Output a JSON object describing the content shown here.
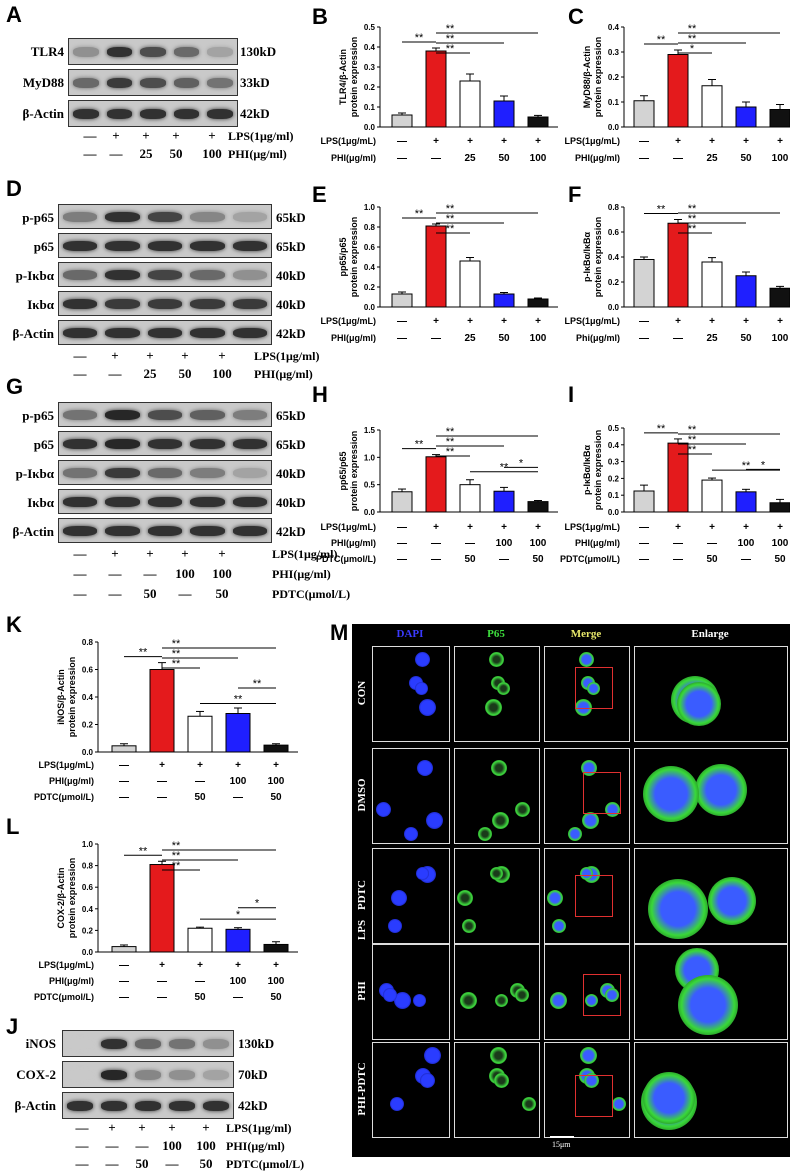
{
  "panel_labels": {
    "A": "A",
    "B": "B",
    "C": "C",
    "D": "D",
    "E": "E",
    "F": "F",
    "G": "G",
    "H": "H",
    "I": "I",
    "J": "J",
    "K": "K",
    "L": "L",
    "M": "M"
  },
  "blot_A": {
    "rows": [
      {
        "name": "TLR4",
        "kd": "130kD"
      },
      {
        "name": "MyD88",
        "kd": "33kD"
      },
      {
        "name": "β-Actin",
        "kd": "42kD"
      }
    ],
    "cond_rows": [
      {
        "label": "LPS(1μg/ml)",
        "values": [
          "—",
          "+",
          "+",
          "+",
          "+"
        ]
      },
      {
        "label": "PHI(μg/ml)",
        "values": [
          "—",
          "—",
          "25",
          "50",
          "100"
        ]
      }
    ]
  },
  "blot_D": {
    "rows": [
      {
        "name": "p-p65",
        "kd": "65kD"
      },
      {
        "name": "p65",
        "kd": "65kD"
      },
      {
        "name": "p-Iκbα",
        "kd": "40kD"
      },
      {
        "name": "Iκbα",
        "kd": "40kD"
      },
      {
        "name": "β-Actin",
        "kd": "42kD"
      }
    ],
    "cond_rows": [
      {
        "label": "LPS(1μg/ml)",
        "values": [
          "—",
          "+",
          "+",
          "+",
          "+"
        ]
      },
      {
        "label": "PHI(μg/ml)",
        "values": [
          "—",
          "—",
          "25",
          "50",
          "100"
        ]
      }
    ]
  },
  "blot_G": {
    "rows": [
      {
        "name": "p-p65",
        "kd": "65kD"
      },
      {
        "name": "p65",
        "kd": "65kD"
      },
      {
        "name": "p-Iκbα",
        "kd": "40kD"
      },
      {
        "name": "Iκbα",
        "kd": "40kD"
      },
      {
        "name": "β-Actin",
        "kd": "42kD"
      }
    ],
    "cond_rows": [
      {
        "label": "LPS(1μg/ml)",
        "values": [
          "—",
          "+",
          "+",
          "+",
          "+"
        ]
      },
      {
        "label": "PHI(μg/ml)",
        "values": [
          "—",
          "—",
          "—",
          "100",
          "100"
        ]
      },
      {
        "label": "PDTC(μmol/L)",
        "values": [
          "—",
          "—",
          "50",
          "—",
          "50"
        ]
      }
    ]
  },
  "blot_J": {
    "rows": [
      {
        "name": "iNOS",
        "kd": "130kD"
      },
      {
        "name": "COX-2",
        "kd": "70kD"
      },
      {
        "name": "β-Actin",
        "kd": "42kD"
      }
    ],
    "cond_rows": [
      {
        "label": "LPS(1μg/ml)",
        "values": [
          "—",
          "+",
          "+",
          "+",
          "+"
        ]
      },
      {
        "label": "PHI(μg/ml)",
        "values": [
          "—",
          "—",
          "—",
          "100",
          "100"
        ]
      },
      {
        "label": "PDTC(μmol/L)",
        "values": [
          "—",
          "—",
          "50",
          "—",
          "50"
        ]
      }
    ]
  },
  "chart_data": [
    {
      "id": "B",
      "type": "bar",
      "ylabel": "TLR4/β-Actin\nprotein expression",
      "ylim": [
        0,
        0.5
      ],
      "yticks": [
        "0.0",
        "0.1",
        "0.2",
        "0.3",
        "0.4",
        "0.5"
      ],
      "values": [
        0.06,
        0.38,
        0.23,
        0.13,
        0.05
      ],
      "errors": [
        0.01,
        0.015,
        0.035,
        0.025,
        0.008
      ],
      "colors": [
        "#d3d3d3",
        "#e41a1c",
        "#ffffff",
        "#1f1fff",
        "#111111"
      ],
      "sig": [
        {
          "a": 0,
          "b": 1,
          "t": "**"
        },
        {
          "a": 1,
          "b": 2,
          "t": "**"
        },
        {
          "a": 1,
          "b": 3,
          "t": "**"
        },
        {
          "a": 1,
          "b": 4,
          "t": "**"
        }
      ],
      "cond_rows": [
        {
          "label": "LPS(1μg/mL)",
          "values": [
            "—",
            "+",
            "+",
            "+",
            "+"
          ]
        },
        {
          "label": "PHI(μg/ml)",
          "values": [
            "—",
            "—",
            "25",
            "50",
            "100"
          ]
        }
      ]
    },
    {
      "id": "C",
      "type": "bar",
      "ylabel": "MyD88/β-Actin\nprotein expression",
      "ylim": [
        0,
        0.4
      ],
      "yticks": [
        "0.0",
        "0.1",
        "0.2",
        "0.3",
        "0.4"
      ],
      "values": [
        0.105,
        0.29,
        0.165,
        0.08,
        0.07
      ],
      "errors": [
        0.02,
        0.018,
        0.025,
        0.02,
        0.02
      ],
      "colors": [
        "#d3d3d3",
        "#e41a1c",
        "#ffffff",
        "#1f1fff",
        "#111111"
      ],
      "sig": [
        {
          "a": 0,
          "b": 1,
          "t": "**"
        },
        {
          "a": 1,
          "b": 2,
          "t": "*"
        },
        {
          "a": 1,
          "b": 3,
          "t": "**"
        },
        {
          "a": 1,
          "b": 4,
          "t": "**"
        }
      ],
      "cond_rows": [
        {
          "label": "LPS(1μg/mL)",
          "values": [
            "—",
            "+",
            "+",
            "+",
            "+"
          ]
        },
        {
          "label": "PHI(μg/ml)",
          "values": [
            "—",
            "—",
            "25",
            "50",
            "100"
          ]
        }
      ]
    },
    {
      "id": "E",
      "type": "bar",
      "ylabel": "pp65/p65\nprotein expression",
      "ylim": [
        0,
        1.0
      ],
      "yticks": [
        "0.0",
        "0.2",
        "0.4",
        "0.6",
        "0.8",
        "1.0"
      ],
      "values": [
        0.13,
        0.81,
        0.46,
        0.13,
        0.08
      ],
      "errors": [
        0.02,
        0.02,
        0.035,
        0.015,
        0.01
      ],
      "colors": [
        "#d3d3d3",
        "#e41a1c",
        "#ffffff",
        "#1f1fff",
        "#111111"
      ],
      "sig": [
        {
          "a": 0,
          "b": 1,
          "t": "**"
        },
        {
          "a": 1,
          "b": 2,
          "t": "**"
        },
        {
          "a": 1,
          "b": 3,
          "t": "**"
        },
        {
          "a": 1,
          "b": 4,
          "t": "**"
        }
      ],
      "cond_rows": [
        {
          "label": "LPS(1μg/mL)",
          "values": [
            "—",
            "+",
            "+",
            "+",
            "+"
          ]
        },
        {
          "label": "PHI(μg/ml)",
          "values": [
            "—",
            "—",
            "25",
            "50",
            "100"
          ]
        }
      ]
    },
    {
      "id": "F",
      "type": "bar",
      "ylabel": "p-IκBα/IκBα\nprotein expression",
      "ylim": [
        0,
        0.8
      ],
      "yticks": [
        "0.0",
        "0.2",
        "0.4",
        "0.6",
        "0.8"
      ],
      "values": [
        0.38,
        0.67,
        0.36,
        0.25,
        0.15
      ],
      "errors": [
        0.02,
        0.03,
        0.035,
        0.03,
        0.015
      ],
      "colors": [
        "#d3d3d3",
        "#e41a1c",
        "#ffffff",
        "#1f1fff",
        "#111111"
      ],
      "sig": [
        {
          "a": 0,
          "b": 1,
          "t": "**"
        },
        {
          "a": 1,
          "b": 2,
          "t": "**"
        },
        {
          "a": 1,
          "b": 3,
          "t": "**"
        },
        {
          "a": 1,
          "b": 4,
          "t": "**"
        }
      ],
      "cond_rows": [
        {
          "label": "LPS(1μg/mL)",
          "values": [
            "—",
            "+",
            "+",
            "+",
            "+"
          ]
        },
        {
          "label": "Phi(μg/ml)",
          "values": [
            "—",
            "—",
            "25",
            "50",
            "100"
          ]
        }
      ]
    },
    {
      "id": "H",
      "type": "bar",
      "ylabel": "pp65/p65\nprotein expression",
      "ylim": [
        0,
        1.5
      ],
      "yticks": [
        "0.0",
        "0.5",
        "1.0",
        "1.5"
      ],
      "values": [
        0.37,
        1.01,
        0.5,
        0.38,
        0.19
      ],
      "errors": [
        0.05,
        0.04,
        0.09,
        0.07,
        0.02
      ],
      "colors": [
        "#d3d3d3",
        "#e41a1c",
        "#ffffff",
        "#1f1fff",
        "#111111"
      ],
      "sig": [
        {
          "a": 0,
          "b": 1,
          "t": "**"
        },
        {
          "a": 1,
          "b": 2,
          "t": "**"
        },
        {
          "a": 1,
          "b": 3,
          "t": "**"
        },
        {
          "a": 1,
          "b": 4,
          "t": "**"
        },
        {
          "a": 2,
          "b": 4,
          "t": "**"
        },
        {
          "a": 3,
          "b": 4,
          "t": "*"
        }
      ],
      "cond_rows": [
        {
          "label": "LPS(1μg/mL)",
          "values": [
            "—",
            "+",
            "+",
            "+",
            "+"
          ]
        },
        {
          "label": "PHI(μg/ml)",
          "values": [
            "—",
            "—",
            "—",
            "100",
            "100"
          ]
        },
        {
          "label": "PDTC(μmol/L)",
          "values": [
            "—",
            "—",
            "50",
            "—",
            "50"
          ]
        }
      ]
    },
    {
      "id": "I",
      "type": "bar",
      "ylabel": "p-IκBα/IκBα\nprotein expression",
      "ylim": [
        0,
        0.5
      ],
      "yticks": [
        "0.0",
        "0.1",
        "0.2",
        "0.3",
        "0.4",
        "0.5"
      ],
      "values": [
        0.125,
        0.41,
        0.19,
        0.12,
        0.055
      ],
      "errors": [
        0.035,
        0.025,
        0.012,
        0.015,
        0.02
      ],
      "colors": [
        "#d3d3d3",
        "#e41a1c",
        "#ffffff",
        "#1f1fff",
        "#111111"
      ],
      "sig": [
        {
          "a": 0,
          "b": 1,
          "t": "**"
        },
        {
          "a": 1,
          "b": 2,
          "t": "**"
        },
        {
          "a": 1,
          "b": 3,
          "t": "**"
        },
        {
          "a": 1,
          "b": 4,
          "t": "**"
        },
        {
          "a": 2,
          "b": 4,
          "t": "**"
        },
        {
          "a": 3,
          "b": 4,
          "t": "*"
        }
      ],
      "cond_rows": [
        {
          "label": "LPS(1μg/mL)",
          "values": [
            "—",
            "+",
            "+",
            "+",
            "+"
          ]
        },
        {
          "label": "PHI(μg/ml)",
          "values": [
            "—",
            "—",
            "—",
            "100",
            "100"
          ]
        },
        {
          "label": "PDTC(μmol/L)",
          "values": [
            "—",
            "—",
            "50",
            "—",
            "50"
          ]
        }
      ]
    },
    {
      "id": "K",
      "type": "bar",
      "ylabel": "iNOS/β-Actin\nprotein expression",
      "ylim": [
        0,
        0.8
      ],
      "yticks": [
        "0.0",
        "0.2",
        "0.4",
        "0.6",
        "0.8"
      ],
      "values": [
        0.045,
        0.6,
        0.26,
        0.28,
        0.05
      ],
      "errors": [
        0.015,
        0.05,
        0.035,
        0.04,
        0.01
      ],
      "colors": [
        "#d3d3d3",
        "#e41a1c",
        "#ffffff",
        "#1f1fff",
        "#111111"
      ],
      "sig": [
        {
          "a": 0,
          "b": 1,
          "t": "**"
        },
        {
          "a": 1,
          "b": 2,
          "t": "**"
        },
        {
          "a": 1,
          "b": 3,
          "t": "**"
        },
        {
          "a": 1,
          "b": 4,
          "t": "**"
        },
        {
          "a": 2,
          "b": 4,
          "t": "**"
        },
        {
          "a": 3,
          "b": 4,
          "t": "**"
        }
      ],
      "cond_rows": [
        {
          "label": "LPS(1μg/mL)",
          "values": [
            "—",
            "+",
            "+",
            "+",
            "+"
          ]
        },
        {
          "label": "PHI(μg/ml)",
          "values": [
            "—",
            "—",
            "—",
            "100",
            "100"
          ]
        },
        {
          "label": "PDTC(μmol/L)",
          "values": [
            "—",
            "—",
            "50",
            "—",
            "50"
          ]
        }
      ]
    },
    {
      "id": "L",
      "type": "bar",
      "ylabel": "COX-2/β-Actin\nprotein expression",
      "ylim": [
        0,
        1.0
      ],
      "yticks": [
        "0.0",
        "0.2",
        "0.4",
        "0.6",
        "0.8",
        "1.0"
      ],
      "values": [
        0.05,
        0.81,
        0.22,
        0.21,
        0.07
      ],
      "errors": [
        0.015,
        0.03,
        0.01,
        0.015,
        0.025
      ],
      "colors": [
        "#d3d3d3",
        "#e41a1c",
        "#ffffff",
        "#1f1fff",
        "#111111"
      ],
      "sig": [
        {
          "a": 0,
          "b": 1,
          "t": "**"
        },
        {
          "a": 1,
          "b": 2,
          "t": "**"
        },
        {
          "a": 1,
          "b": 3,
          "t": "**"
        },
        {
          "a": 1,
          "b": 4,
          "t": "**"
        },
        {
          "a": 2,
          "b": 4,
          "t": "*"
        },
        {
          "a": 3,
          "b": 4,
          "t": "*"
        }
      ],
      "cond_rows": [
        {
          "label": "LPS(1μg/mL)",
          "values": [
            "—",
            "+",
            "+",
            "+",
            "+"
          ]
        },
        {
          "label": "PHI(μg/ml)",
          "values": [
            "—",
            "—",
            "—",
            "100",
            "100"
          ]
        },
        {
          "label": "PDTC(μmol/L)",
          "values": [
            "—",
            "—",
            "50",
            "—",
            "50"
          ]
        }
      ]
    }
  ],
  "micro": {
    "headers": [
      "DAPI",
      "P65",
      "Merge",
      "Enlarge"
    ],
    "header_colors": [
      "#3a3aff",
      "#3ddc3d",
      "#e8e86a",
      "#ffffff"
    ],
    "rows": [
      "CON",
      "DMSO",
      "PDTC",
      "PHI",
      "PHI-PDTC"
    ],
    "group_label": "LPS",
    "scale": "15μm"
  }
}
